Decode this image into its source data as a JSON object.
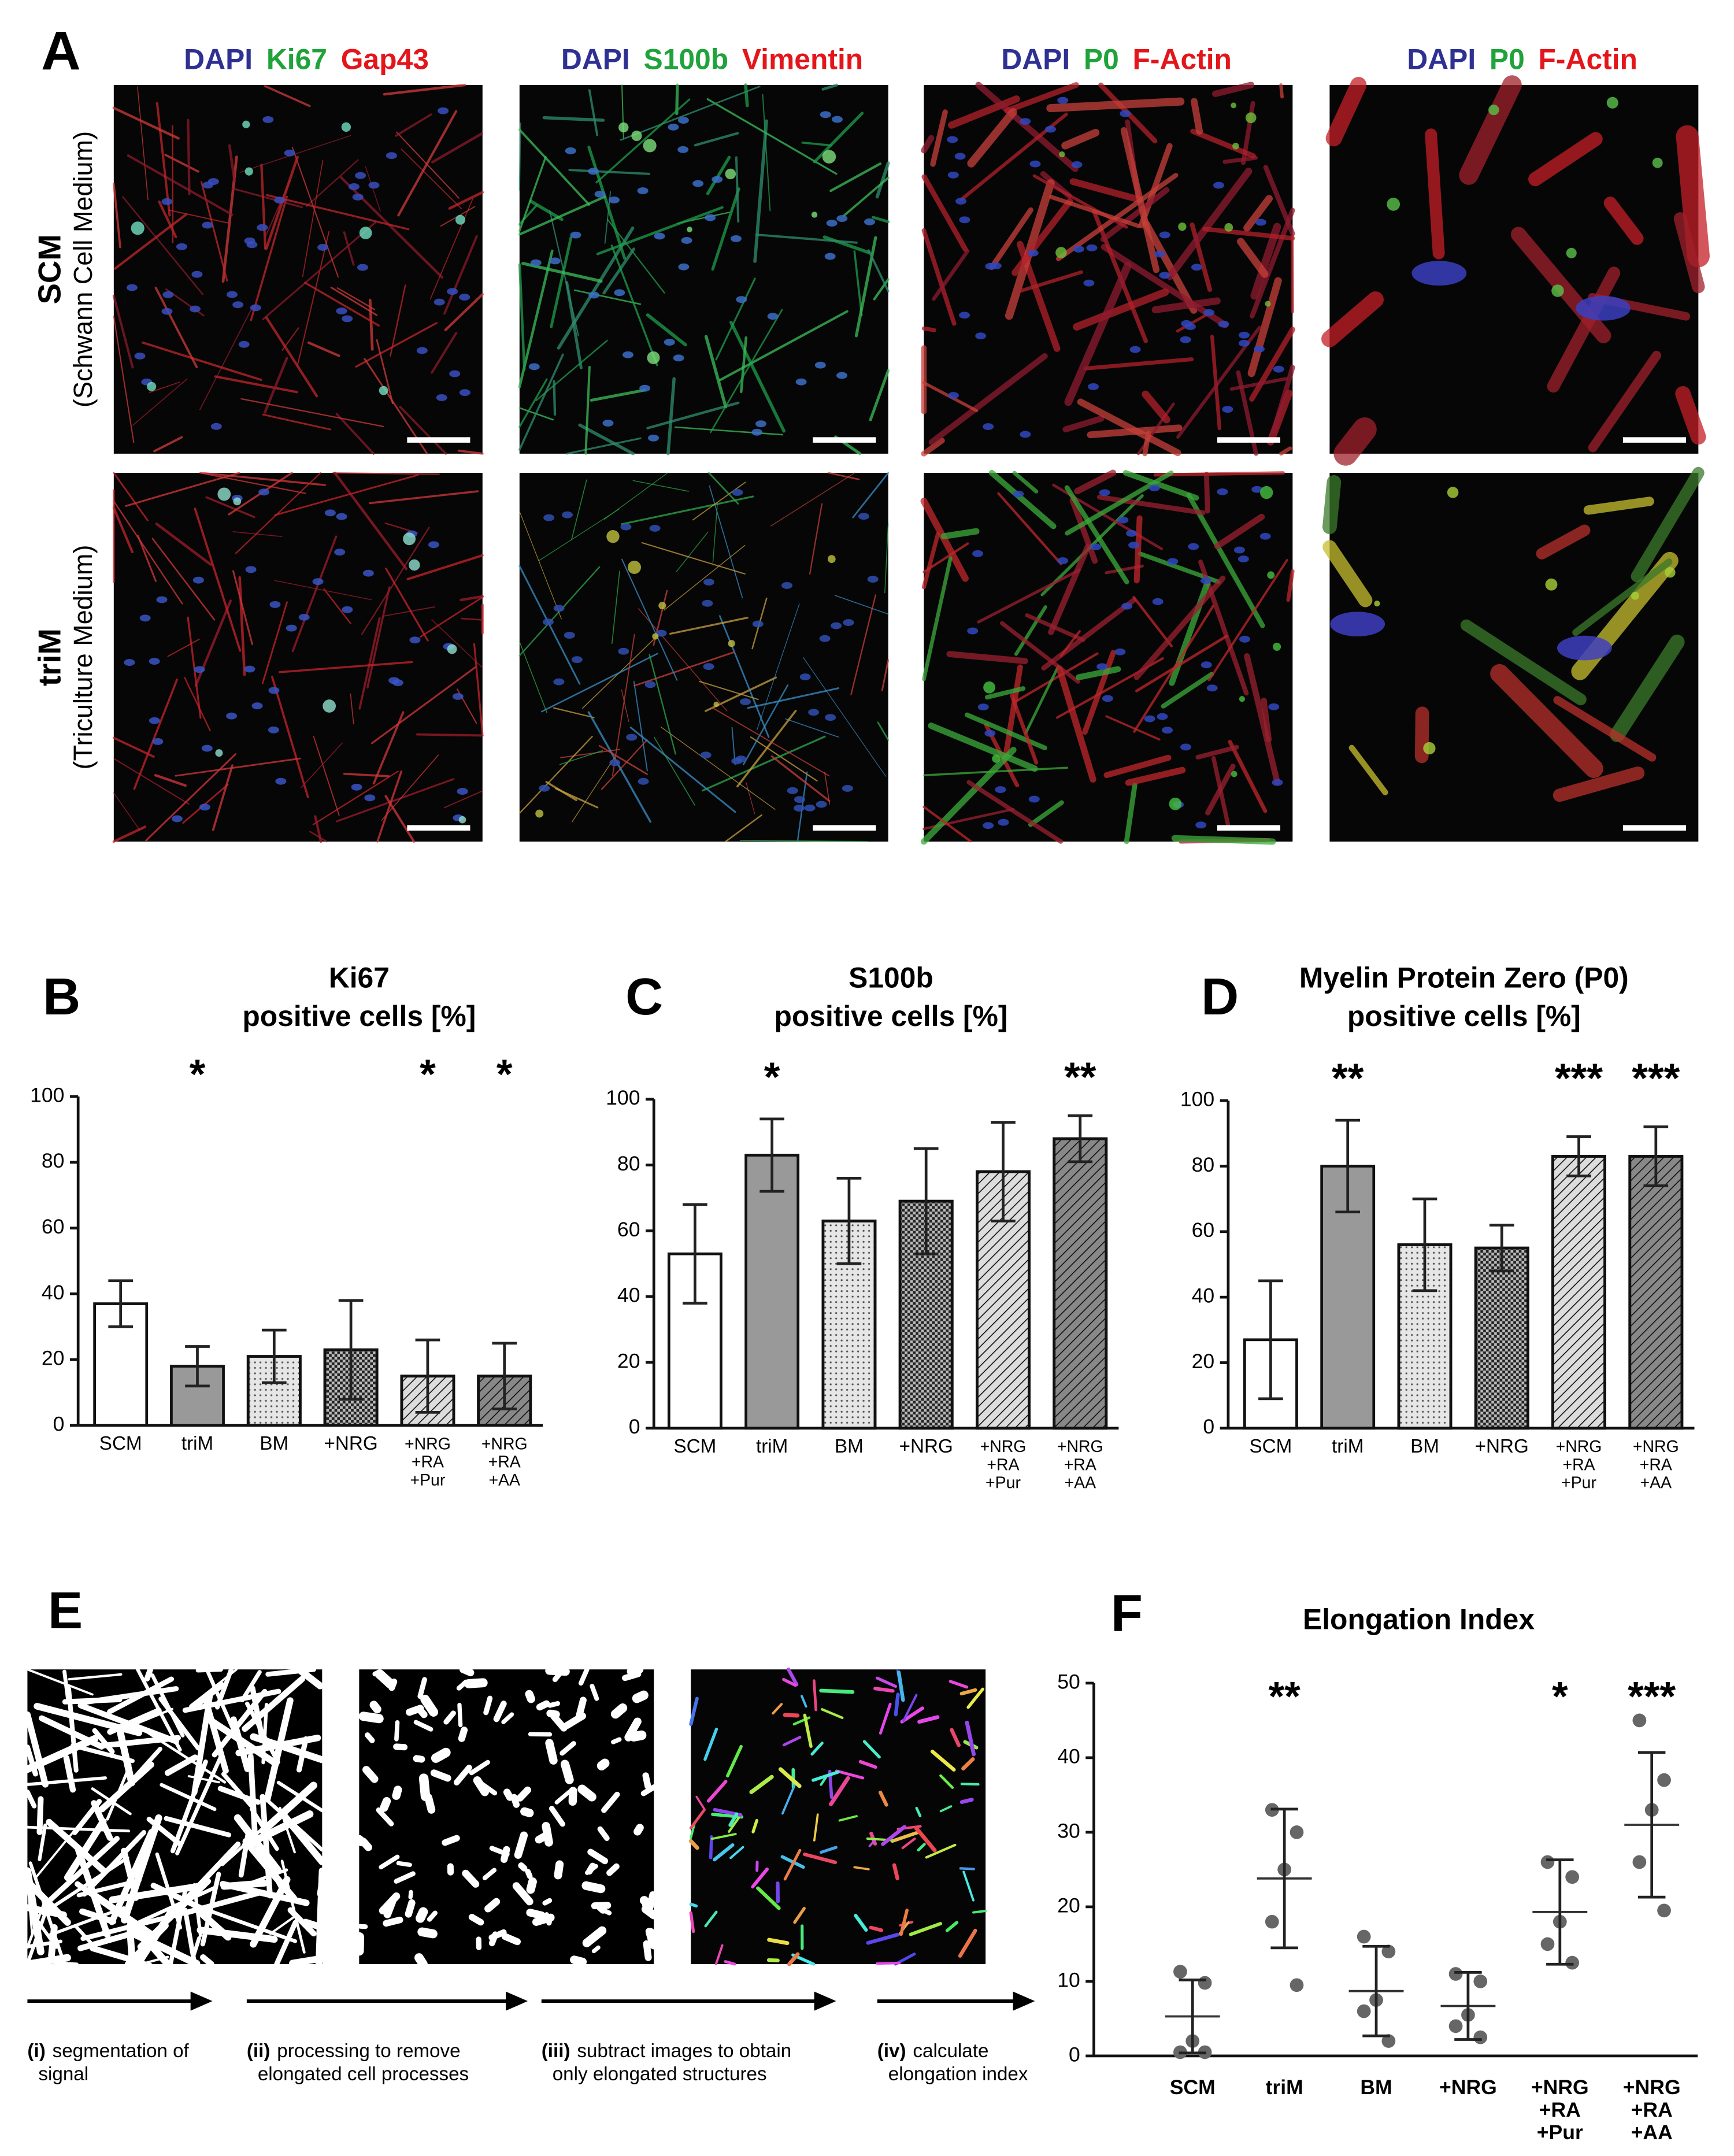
{
  "panel_a": {
    "label": "A",
    "columns": [
      {
        "stains": [
          {
            "text": "DAPI",
            "color": "#2e3192"
          },
          {
            "text": "Ki67",
            "color": "#1fa33a"
          },
          {
            "text": "Gap43",
            "color": "#e3161b"
          }
        ]
      },
      {
        "stains": [
          {
            "text": "DAPI",
            "color": "#2e3192"
          },
          {
            "text": "S100b",
            "color": "#1fa33a"
          },
          {
            "text": "Vimentin",
            "color": "#e3161b"
          }
        ]
      },
      {
        "stains": [
          {
            "text": "DAPI",
            "color": "#2e3192"
          },
          {
            "text": "P0",
            "color": "#1fa33a"
          },
          {
            "text": "F-Actin",
            "color": "#e3161b"
          }
        ]
      },
      {
        "stains": [
          {
            "text": "DAPI",
            "color": "#2e3192"
          },
          {
            "text": "P0",
            "color": "#1fa33a"
          },
          {
            "text": "F-Actin",
            "color": "#e3161b"
          }
        ]
      }
    ],
    "rows": [
      {
        "title": "SCM",
        "subtitle": "(Schwann Cell Medium)"
      },
      {
        "title": "triM",
        "subtitle": "(Triculture Medium)"
      }
    ]
  },
  "chart_data": [
    {
      "type": "bar",
      "panel_label": "B",
      "title": "Ki67",
      "subtitle": "positive cells [%]",
      "categories": [
        "SCM",
        "triM",
        "BM",
        "+NRG",
        "+NRG\n+RA\n+Pur",
        "+NRG\n+RA\n+AA"
      ],
      "values": [
        37,
        18,
        21,
        23,
        15,
        15
      ],
      "errors": [
        7,
        6,
        8,
        15,
        11,
        10
      ],
      "significance": [
        null,
        "*",
        null,
        null,
        "*",
        "*"
      ],
      "bar_styles": [
        {
          "fill": "#ffffff",
          "pattern": "solid"
        },
        {
          "fill": "#999999",
          "pattern": "solid"
        },
        {
          "fill": "#e6e6e6",
          "pattern": "dots"
        },
        {
          "fill": "#bbbbbb",
          "pattern": "checker"
        },
        {
          "fill": "#dddddd",
          "pattern": "hatch"
        },
        {
          "fill": "#888888",
          "pattern": "hatch"
        }
      ],
      "ylim": [
        0,
        100
      ],
      "yticks": [
        0,
        20,
        40,
        60,
        80,
        100
      ]
    },
    {
      "type": "bar",
      "panel_label": "C",
      "title": "S100b",
      "subtitle": "positive cells [%]",
      "categories": [
        "SCM",
        "triM",
        "BM",
        "+NRG",
        "+NRG\n+RA\n+Pur",
        "+NRG\n+RA\n+AA"
      ],
      "values": [
        53,
        83,
        63,
        69,
        78,
        88
      ],
      "errors": [
        15,
        11,
        13,
        16,
        15,
        7
      ],
      "significance": [
        null,
        "*",
        null,
        null,
        null,
        "**"
      ],
      "bar_styles": [
        {
          "fill": "#ffffff",
          "pattern": "solid"
        },
        {
          "fill": "#999999",
          "pattern": "solid"
        },
        {
          "fill": "#e6e6e6",
          "pattern": "dots"
        },
        {
          "fill": "#bbbbbb",
          "pattern": "checker"
        },
        {
          "fill": "#dddddd",
          "pattern": "hatch"
        },
        {
          "fill": "#888888",
          "pattern": "hatch"
        }
      ],
      "ylim": [
        0,
        100
      ],
      "yticks": [
        0,
        20,
        40,
        60,
        80,
        100
      ]
    },
    {
      "type": "bar",
      "panel_label": "D",
      "title": "Myelin Protein Zero (P0)",
      "subtitle": "positive cells [%]",
      "categories": [
        "SCM",
        "triM",
        "BM",
        "+NRG",
        "+NRG\n+RA\n+Pur",
        "+NRG\n+RA\n+AA"
      ],
      "values": [
        27,
        80,
        56,
        55,
        83,
        83
      ],
      "errors": [
        18,
        14,
        14,
        7,
        6,
        9
      ],
      "significance": [
        null,
        "**",
        null,
        null,
        "***",
        "***"
      ],
      "bar_styles": [
        {
          "fill": "#ffffff",
          "pattern": "solid"
        },
        {
          "fill": "#999999",
          "pattern": "solid"
        },
        {
          "fill": "#e6e6e6",
          "pattern": "dots"
        },
        {
          "fill": "#bbbbbb",
          "pattern": "checker"
        },
        {
          "fill": "#dddddd",
          "pattern": "hatch"
        },
        {
          "fill": "#888888",
          "pattern": "hatch"
        }
      ],
      "ylim": [
        0,
        100
      ],
      "yticks": [
        0,
        20,
        40,
        60,
        80,
        100
      ]
    },
    {
      "type": "dot",
      "panel_label": "F",
      "title": "Elongation Index",
      "categories": [
        "SCM",
        "triM",
        "BM",
        "+NRG",
        "+NRG\n+RA\n+Pur",
        "+NRG\n+RA\n+AA"
      ],
      "values": [
        [
          11.3,
          9.8,
          2,
          0.5,
          0.5
        ],
        [
          33,
          30,
          25,
          18,
          9.5
        ],
        [
          16,
          14,
          7.5,
          6,
          2
        ],
        [
          11,
          10,
          5.5,
          4,
          2.5
        ],
        [
          26,
          24,
          18,
          15,
          12.5
        ],
        [
          45,
          37,
          33,
          26,
          19.5
        ]
      ],
      "means": [
        5.3,
        23.8,
        8.7,
        6.7,
        19.3,
        31
      ],
      "errors": [
        4.9,
        9.3,
        6,
        4.5,
        7,
        9.7
      ],
      "significance": [
        null,
        "**",
        null,
        null,
        "*",
        "***"
      ],
      "point_color": "#666666",
      "ylim": [
        0,
        50
      ],
      "yticks": [
        0,
        10,
        20,
        30,
        40,
        50
      ]
    }
  ],
  "panel_e": {
    "label": "E",
    "steps": [
      {
        "number": "(i)",
        "lines": [
          "segmentation of",
          "signal"
        ]
      },
      {
        "number": "(ii)",
        "lines": [
          "processing to remove",
          "elongated cell processes"
        ]
      },
      {
        "number": "(iii)",
        "lines": [
          "subtract images to obtain",
          "only elongated structures"
        ]
      },
      {
        "number": "(iv)",
        "lines": [
          "calculate",
          "elongation index"
        ]
      }
    ]
  }
}
